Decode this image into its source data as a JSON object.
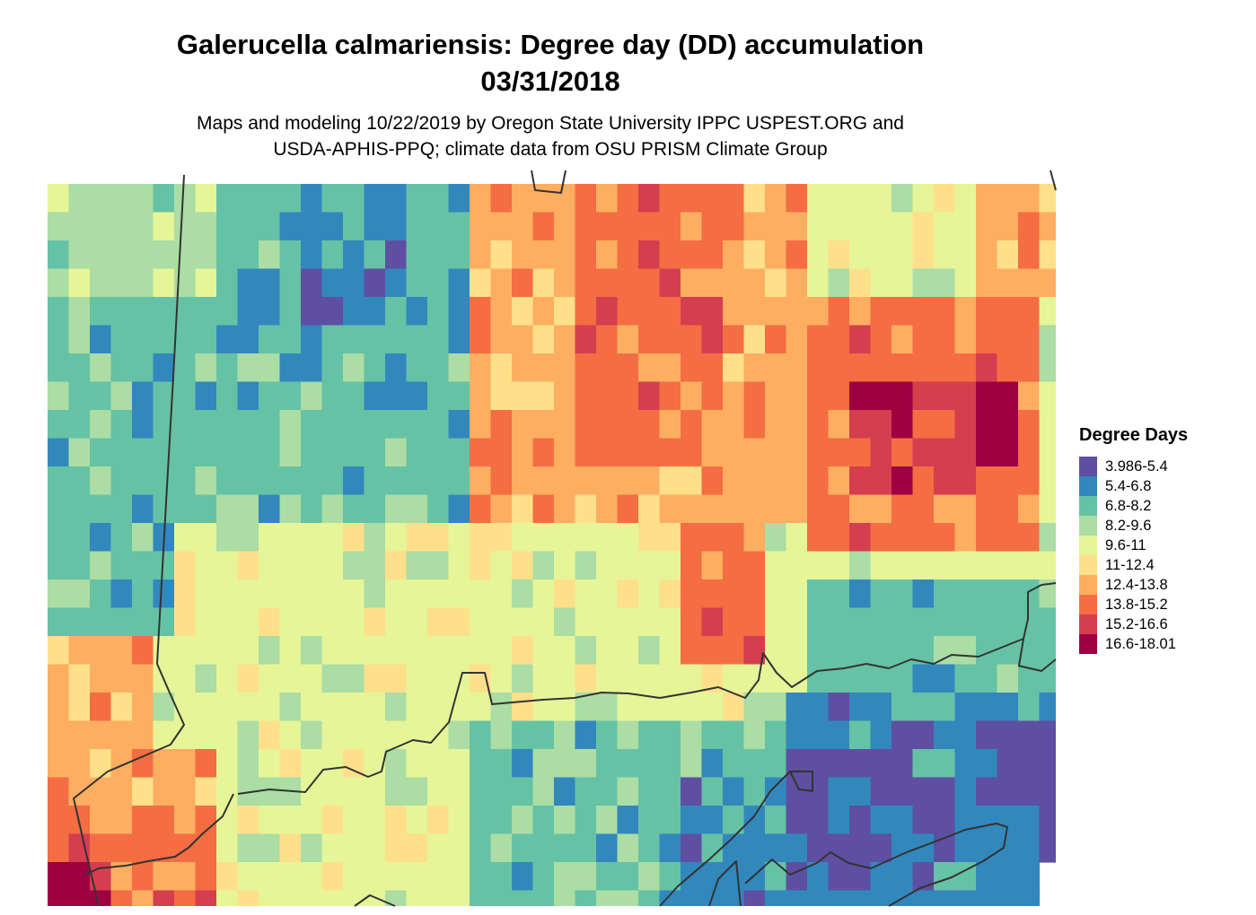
{
  "title_line1": "Galerucella calmariensis: Degree day (DD) accumulation",
  "title_line2": "03/31/2018",
  "subtitle_line1": "Maps and modeling 10/22/2019 by Oregon State University IPPC USPEST.ORG and",
  "subtitle_line2": "USDA-APHIS-PPQ; climate data from OSU PRISM Climate Group",
  "legend": {
    "title": "Degree Days",
    "items": [
      {
        "label": "3.986-5.4",
        "color": "#5e4fa2"
      },
      {
        "label": "5.4-6.8",
        "color": "#3288bd"
      },
      {
        "label": "6.8-8.2",
        "color": "#66c2a5"
      },
      {
        "label": "8.2-9.6",
        "color": "#abdda4"
      },
      {
        "label": "9.6-11",
        "color": "#e6f598"
      },
      {
        "label": "11-12.4",
        "color": "#fee08b"
      },
      {
        "label": "12.4-13.8",
        "color": "#fdae61"
      },
      {
        "label": "13.8-15.2",
        "color": "#f46d43"
      },
      {
        "label": "15.2-16.6",
        "color": "#d53e4f"
      },
      {
        "label": "16.6-18.01",
        "color": "#9e0142"
      }
    ]
  }
}
